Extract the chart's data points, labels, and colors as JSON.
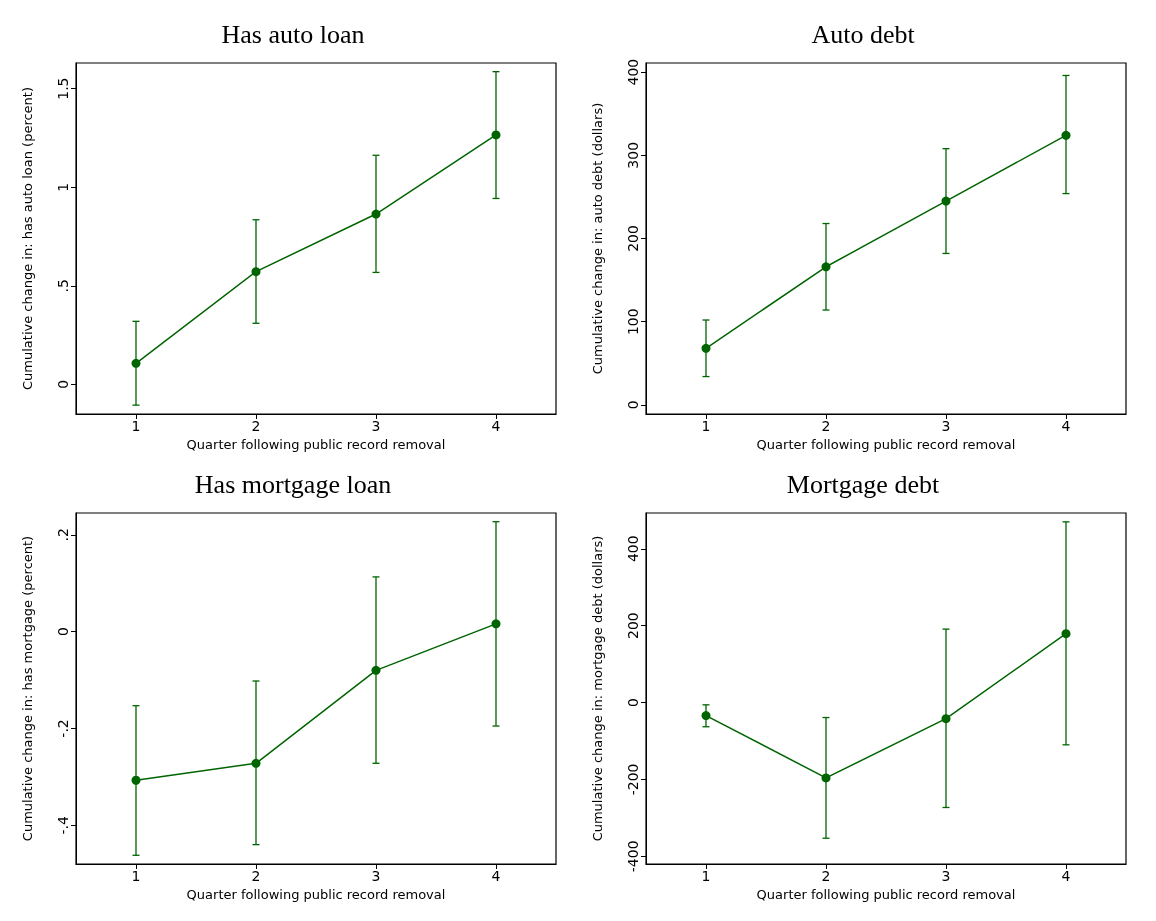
{
  "chart_data": [
    {
      "type": "line",
      "title": "Has auto loan",
      "xlabel": "Quarter following public record removal",
      "ylabel": "Cumulative change in: has auto loan (percent)",
      "x": [
        1,
        2,
        3,
        4
      ],
      "xlim": [
        0.5,
        4.5
      ],
      "xticks": [
        1,
        2,
        3,
        4
      ],
      "ylim": [
        -0.15,
        1.63
      ],
      "yticks": [
        0,
        {
          "value": 0.5,
          "label": ".5"
        },
        1,
        1.5
      ],
      "grid": false,
      "marker": "circle",
      "line_style": "solid",
      "series": [
        {
          "color": "#006400",
          "values": [
            0.107,
            0.572,
            0.864,
            1.265
          ],
          "errors": [
            [
              -0.105,
              0.32
            ],
            [
              0.31,
              0.835
            ],
            [
              0.568,
              1.162
            ],
            [
              0.943,
              1.586
            ]
          ]
        }
      ]
    },
    {
      "type": "line",
      "title": "Auto debt",
      "xlabel": "Quarter following public record removal",
      "ylabel": "Cumulative change in: auto debt (dollars)",
      "x": [
        1,
        2,
        3,
        4
      ],
      "xlim": [
        0.5,
        4.5
      ],
      "xticks": [
        1,
        2,
        3,
        4
      ],
      "ylim": [
        -11,
        411
      ],
      "yticks": [
        0,
        100,
        200,
        300,
        400
      ],
      "grid": false,
      "marker": "circle",
      "line_style": "solid",
      "series": [
        {
          "color": "#006400",
          "values": [
            68,
            166,
            245,
            324
          ],
          "errors": [
            [
              34,
              102
            ],
            [
              114,
              218
            ],
            [
              182,
              308
            ],
            [
              254,
              396
            ]
          ]
        }
      ]
    },
    {
      "type": "line",
      "title": "Has mortgage loan",
      "xlabel": "Quarter following public record removal",
      "ylabel": "Cumulative change in: has mortgage (percent)",
      "x": [
        1,
        2,
        3,
        4
      ],
      "xlim": [
        0.5,
        4.5
      ],
      "xticks": [
        1,
        2,
        3,
        4
      ],
      "ylim": [
        -0.48,
        0.245
      ],
      "yticks": [
        {
          "value": -0.4,
          "label": "-.4"
        },
        {
          "value": -0.2,
          "label": "-.2"
        },
        0,
        {
          "value": 0.2,
          "label": ".2"
        }
      ],
      "grid": false,
      "marker": "circle",
      "line_style": "solid",
      "series": [
        {
          "color": "#006400",
          "values": [
            -0.307,
            -0.272,
            -0.08,
            0.016
          ],
          "errors": [
            [
              -0.462,
              -0.153
            ],
            [
              -0.44,
              -0.102
            ],
            [
              -0.272,
              0.113
            ],
            [
              -0.195,
              0.227
            ]
          ]
        }
      ]
    },
    {
      "type": "line",
      "title": "Mortgage debt",
      "xlabel": "Quarter following public record removal",
      "ylabel": "Cumulative change in: mortgage debt (dollars)",
      "x": [
        1,
        2,
        3,
        4
      ],
      "xlim": [
        0.5,
        4.5
      ],
      "xticks": [
        1,
        2,
        3,
        4
      ],
      "ylim": [
        -420,
        493
      ],
      "yticks": [
        -400,
        -200,
        0,
        200,
        400
      ],
      "grid": false,
      "marker": "circle",
      "line_style": "solid",
      "series": [
        {
          "color": "#006400",
          "values": [
            -34,
            -196,
            -42,
            179
          ],
          "errors": [
            [
              -63,
              -6
            ],
            [
              -353,
              -39
            ],
            [
              -273,
              191
            ],
            [
              -110,
              470
            ]
          ]
        }
      ]
    }
  ]
}
